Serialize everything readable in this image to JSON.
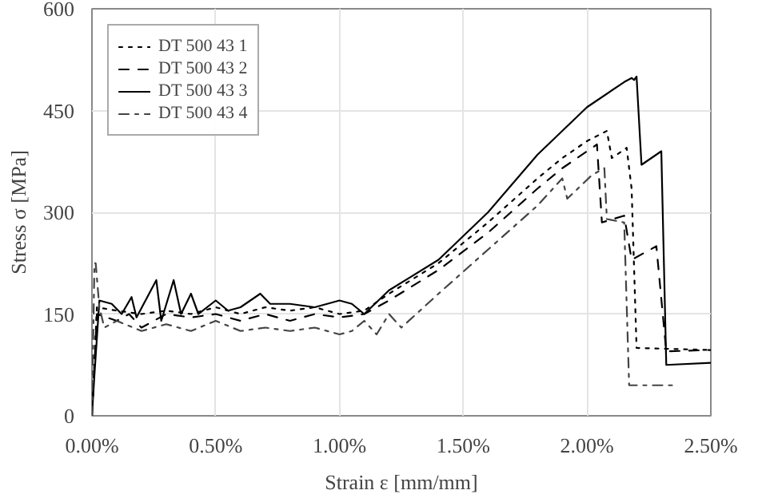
{
  "chart_data": {
    "type": "line",
    "xlabel": "Strain ε [mm/mm]",
    "ylabel": "Stress σ [MPa]",
    "xlim": [
      0,
      2.5
    ],
    "xticks": [
      {
        "value": 0,
        "label": "0.00%"
      },
      {
        "value": 0.5,
        "label": "0.50%"
      },
      {
        "value": 1,
        "label": "1.00%"
      },
      {
        "value": 1.5,
        "label": "1.50%"
      },
      {
        "value": 2,
        "label": "2.00%"
      },
      {
        "value": 2.5,
        "label": "2.50%"
      }
    ],
    "ylim": [
      0,
      600
    ],
    "yticks": [
      0,
      150,
      300,
      450,
      600
    ],
    "grid": true,
    "legend": "top left",
    "marker": "none",
    "series": [
      {
        "name": "DT 500 43 1",
        "color": "#000000",
        "line_style": "dotted",
        "x": [
          0,
          0.02,
          0.1,
          0.2,
          0.3,
          0.4,
          0.5,
          0.6,
          0.7,
          0.8,
          0.9,
          1.0,
          1.1,
          1.2,
          1.4,
          1.6,
          1.8,
          1.9,
          2.0,
          2.08,
          2.1,
          2.16,
          2.18,
          2.2,
          2.5
        ],
        "values": [
          0,
          160,
          155,
          150,
          155,
          150,
          160,
          150,
          160,
          155,
          160,
          150,
          155,
          180,
          225,
          285,
          350,
          380,
          405,
          420,
          380,
          395,
          335,
          100,
          97
        ]
      },
      {
        "name": "DT 500 43 2",
        "color": "#000000",
        "line_style": "dashed",
        "x": [
          0,
          0.02,
          0.1,
          0.15,
          0.2,
          0.3,
          0.4,
          0.5,
          0.6,
          0.7,
          0.8,
          0.9,
          1.0,
          1.1,
          1.2,
          1.4,
          1.6,
          1.8,
          1.9,
          2.04,
          2.06,
          2.15,
          2.18,
          2.28,
          2.32,
          2.5
        ],
        "values": [
          0,
          150,
          140,
          150,
          130,
          150,
          145,
          150,
          140,
          150,
          140,
          150,
          145,
          150,
          170,
          215,
          270,
          335,
          365,
          400,
          285,
          295,
          230,
          250,
          95,
          97
        ]
      },
      {
        "name": "DT 500 43 3",
        "color": "#000000",
        "line_style": "solid",
        "x": [
          0,
          0.01,
          0.03,
          0.08,
          0.12,
          0.16,
          0.18,
          0.26,
          0.28,
          0.33,
          0.36,
          0.4,
          0.43,
          0.5,
          0.55,
          0.6,
          0.68,
          0.72,
          0.8,
          0.9,
          1.0,
          1.05,
          1.1,
          1.2,
          1.4,
          1.6,
          1.8,
          2.0,
          2.15,
          2.18,
          2.19,
          2.2,
          2.22,
          2.3,
          2.32,
          2.5
        ],
        "values": [
          0,
          60,
          170,
          165,
          150,
          175,
          145,
          200,
          140,
          200,
          150,
          180,
          150,
          170,
          155,
          160,
          180,
          165,
          165,
          160,
          170,
          165,
          150,
          185,
          230,
          300,
          385,
          455,
          492,
          498,
          495,
          500,
          370,
          390,
          75,
          78
        ]
      },
      {
        "name": "DT 500 43 4",
        "color": "#444444",
        "line_style": "dashdot",
        "x": [
          0,
          0.01,
          0.015,
          0.03,
          0.05,
          0.1,
          0.2,
          0.3,
          0.4,
          0.5,
          0.6,
          0.7,
          0.8,
          0.9,
          1.0,
          1.05,
          1.1,
          1.15,
          1.2,
          1.25,
          1.4,
          1.6,
          1.8,
          1.9,
          1.92,
          2.02,
          2.07,
          2.08,
          2.15,
          2.17,
          2.25,
          2.35
        ],
        "values": [
          0,
          225,
          225,
          160,
          130,
          140,
          125,
          135,
          125,
          140,
          125,
          130,
          125,
          130,
          120,
          125,
          140,
          120,
          150,
          130,
          180,
          245,
          310,
          350,
          320,
          355,
          365,
          290,
          285,
          45,
          45,
          45
        ]
      }
    ]
  }
}
